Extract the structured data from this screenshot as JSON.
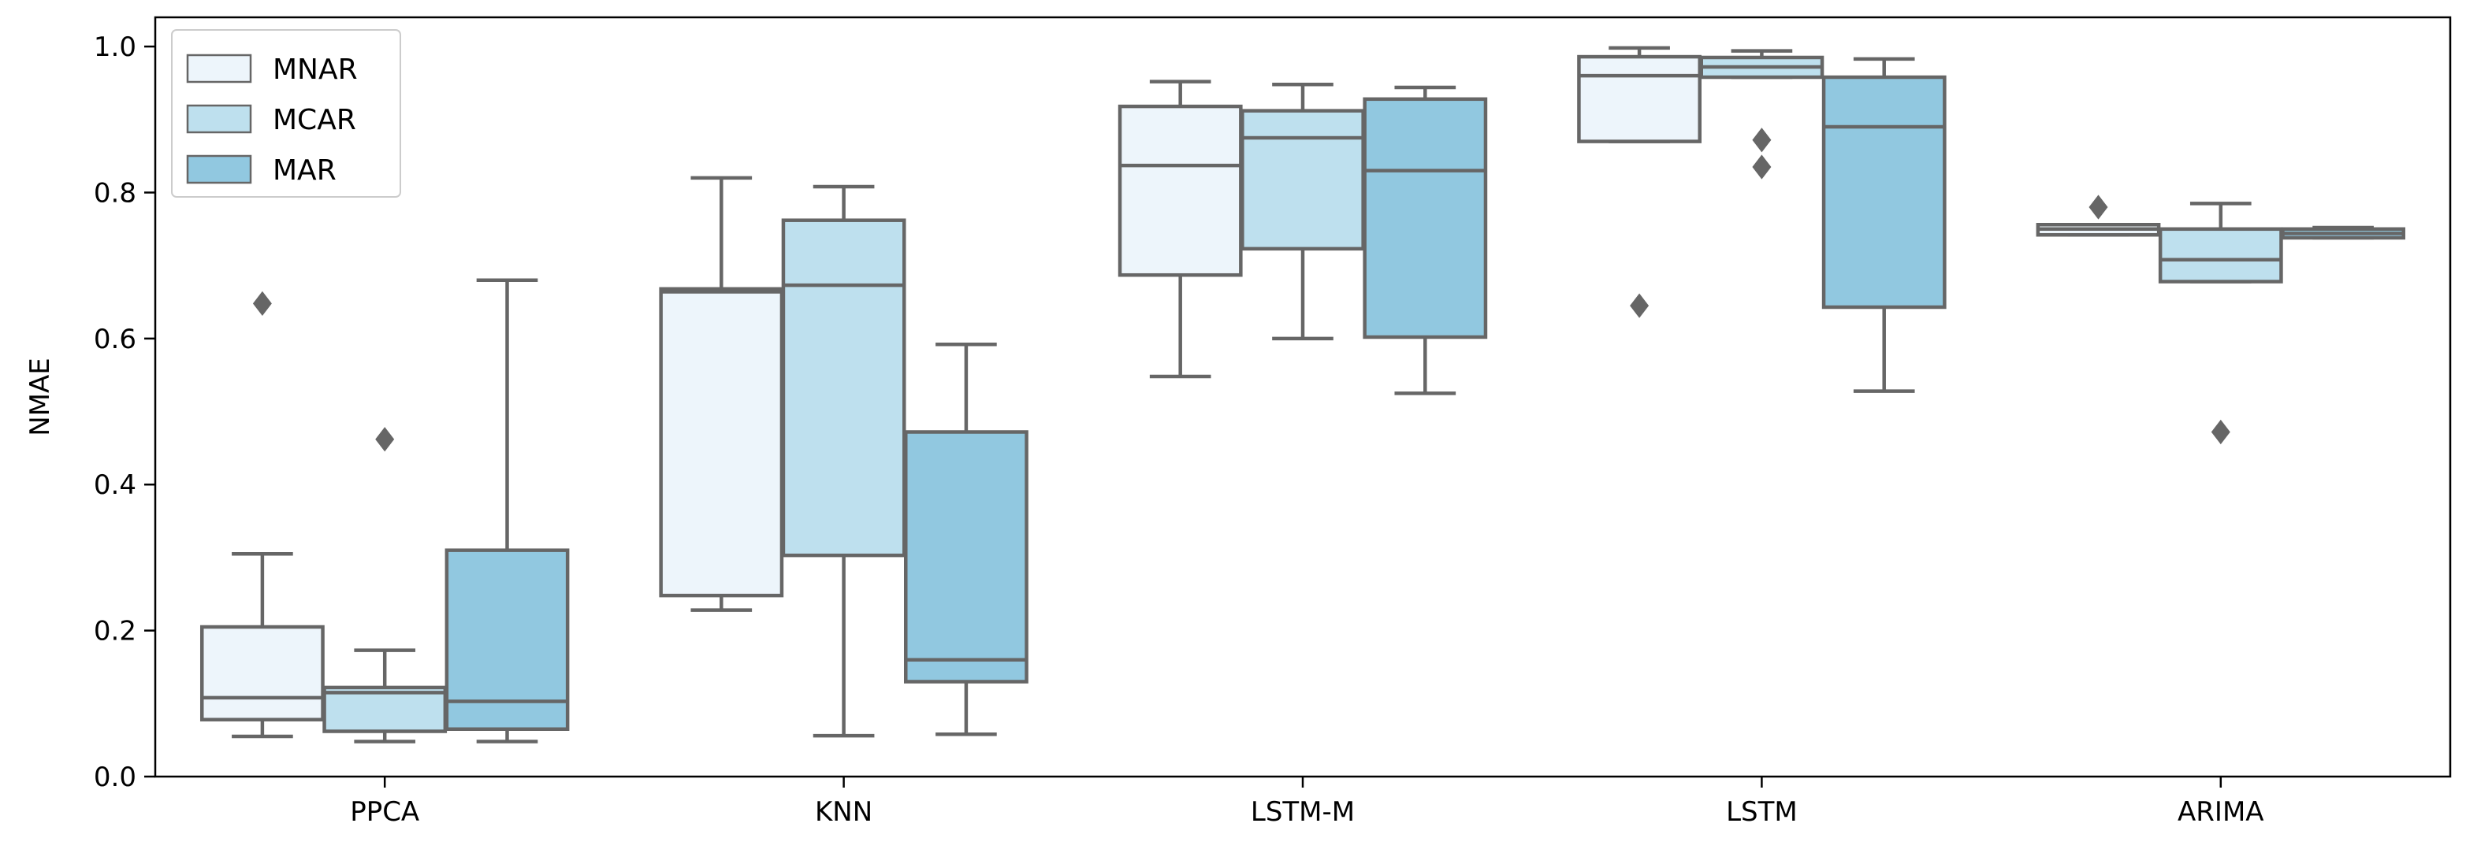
{
  "chart_data": {
    "type": "box",
    "title": "",
    "xlabel": "",
    "ylabel": "NMAE",
    "ylim": [
      0.0,
      1.04
    ],
    "yticks": [
      0.0,
      0.2,
      0.4,
      0.6,
      0.8,
      1.0
    ],
    "ytick_labels": [
      "0.0",
      "0.2",
      "0.4",
      "0.6",
      "0.8",
      "1.0"
    ],
    "grid": false,
    "legend": "top-left",
    "categories": [
      "PPCA",
      "KNN",
      "LSTM-M",
      "LSTM",
      "ARIMA"
    ],
    "series": [
      {
        "name": "MNAR",
        "color": "#edf5fb",
        "boxes": [
          {
            "whislo": 0.055,
            "q1": 0.078,
            "med": 0.108,
            "q3": 0.205,
            "whishi": 0.305,
            "fliers": [
              0.648
            ]
          },
          {
            "whislo": 0.228,
            "q1": 0.248,
            "med": 0.664,
            "q3": 0.668,
            "whishi": 0.82,
            "fliers": []
          },
          {
            "whislo": 0.548,
            "q1": 0.687,
            "med": 0.837,
            "q3": 0.918,
            "whishi": 0.952,
            "fliers": []
          },
          {
            "whislo": 0.87,
            "q1": 0.87,
            "med": 0.96,
            "q3": 0.986,
            "whishi": 0.998,
            "fliers": [
              0.645
            ]
          },
          {
            "whislo": 0.742,
            "q1": 0.742,
            "med": 0.75,
            "q3": 0.756,
            "whishi": 0.756,
            "fliers": [
              0.78
            ]
          }
        ]
      },
      {
        "name": "MCAR",
        "color": "#bee0ee",
        "boxes": [
          {
            "whislo": 0.048,
            "q1": 0.062,
            "med": 0.115,
            "q3": 0.122,
            "whishi": 0.173,
            "fliers": [
              0.462
            ]
          },
          {
            "whislo": 0.056,
            "q1": 0.303,
            "med": 0.673,
            "q3": 0.762,
            "whishi": 0.808,
            "fliers": []
          },
          {
            "whislo": 0.6,
            "q1": 0.723,
            "med": 0.875,
            "q3": 0.912,
            "whishi": 0.948,
            "fliers": []
          },
          {
            "whislo": 0.958,
            "q1": 0.958,
            "med": 0.972,
            "q3": 0.985,
            "whishi": 0.994,
            "fliers": [
              0.872,
              0.835
            ]
          },
          {
            "whislo": 0.678,
            "q1": 0.678,
            "med": 0.708,
            "q3": 0.75,
            "whishi": 0.785,
            "fliers": [
              0.472
            ]
          }
        ]
      },
      {
        "name": "MAR",
        "color": "#91c8e0",
        "boxes": [
          {
            "whislo": 0.048,
            "q1": 0.065,
            "med": 0.103,
            "q3": 0.31,
            "whishi": 0.68,
            "fliers": []
          },
          {
            "whislo": 0.058,
            "q1": 0.13,
            "med": 0.16,
            "q3": 0.472,
            "whishi": 0.592,
            "fliers": []
          },
          {
            "whislo": 0.525,
            "q1": 0.602,
            "med": 0.83,
            "q3": 0.928,
            "whishi": 0.944,
            "fliers": []
          },
          {
            "whislo": 0.528,
            "q1": 0.643,
            "med": 0.89,
            "q3": 0.958,
            "whishi": 0.983,
            "fliers": []
          },
          {
            "whislo": 0.738,
            "q1": 0.738,
            "med": 0.744,
            "q3": 0.75,
            "whishi": 0.752,
            "fliers": []
          }
        ]
      }
    ]
  }
}
